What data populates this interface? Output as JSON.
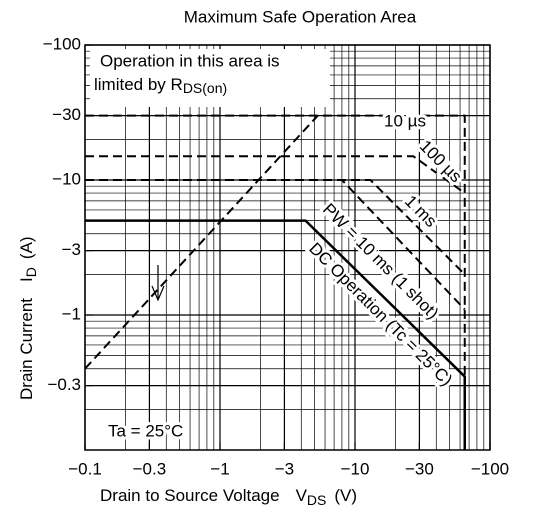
{
  "chart_data": {
    "type": "line",
    "title": "Maximum Safe Operation Area",
    "x_label": "Drain to Source Voltage",
    "x_symbol": "V",
    "x_subscript": "DS",
    "x_unit": "(V)",
    "y_label": "Drain Current",
    "y_symbol": "I",
    "y_subscript": "D",
    "y_unit": "(A)",
    "xlim": [
      -0.1,
      -100
    ],
    "ylim": [
      -0.1,
      -100
    ],
    "log_scale": true,
    "grid": true,
    "minor_grid": true,
    "color": "#000000",
    "xticks": [
      {
        "value": -0.1,
        "label": "−0.1"
      },
      {
        "value": -0.3,
        "label": "−0.3"
      },
      {
        "value": -1,
        "label": "−1"
      },
      {
        "value": -3,
        "label": "−3"
      },
      {
        "value": -10,
        "label": "−10"
      },
      {
        "value": -30,
        "label": "−30"
      },
      {
        "value": -100,
        "label": "−100"
      }
    ],
    "yticks": [
      {
        "value": -100,
        "label": "−100"
      },
      {
        "value": -30,
        "label": "−30"
      },
      {
        "value": -10,
        "label": "−10"
      },
      {
        "value": -3,
        "label": "−3"
      },
      {
        "value": -1,
        "label": "−1"
      },
      {
        "value": -0.3,
        "label": "−0.3"
      }
    ],
    "series": [
      {
        "name": "10 µs",
        "dash": true,
        "x": [
          -0.1,
          -65,
          -65
        ],
        "y": [
          -30,
          -30,
          -0.3
        ]
      },
      {
        "name": "100 µs",
        "dash": true,
        "x": [
          -0.1,
          -27,
          -65
        ],
        "y": [
          -15,
          -15,
          -8
        ]
      },
      {
        "name": "1 ms",
        "dash": true,
        "x": [
          -0.1,
          -13,
          -65
        ],
        "y": [
          -10,
          -10,
          -2
        ]
      },
      {
        "name": "PW = 10 ms (1 shot)",
        "dash": true,
        "x": [
          -0.1,
          -8,
          -65
        ],
        "y": [
          -10,
          -10,
          -1.1
        ]
      },
      {
        "name": "DC Operation (Tc = 25°C)",
        "dash": false,
        "x": [
          -0.1,
          -4.3,
          -65,
          -65
        ],
        "y": [
          -5,
          -5,
          -0.35,
          -0.1
        ]
      },
      {
        "dash": true,
        "x": [
          -0.1,
          -5.3
        ],
        "y": [
          -0.4,
          -30
        ]
      }
    ],
    "annotations": {
      "area_line1": "Operation in this area is",
      "area_line2": "limited by R",
      "area_sub": "DS(on)",
      "ambient": "Ta = 25°C"
    }
  }
}
